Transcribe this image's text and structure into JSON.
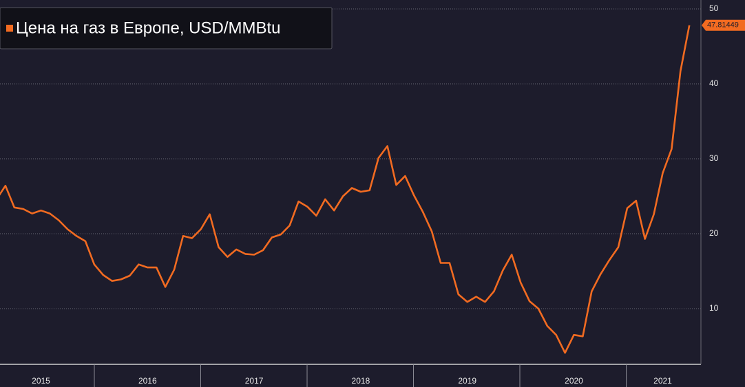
{
  "chart_data": {
    "type": "line",
    "title": "Цена на газ в Европе, USD/MMBtu",
    "categories": [
      null,
      null,
      null,
      null,
      null,
      "2015",
      null,
      null,
      null,
      null,
      null,
      null,
      null,
      null,
      null,
      null,
      null,
      "2016",
      null,
      null,
      null,
      null,
      null,
      null,
      null,
      null,
      null,
      null,
      null,
      "2017",
      null,
      null,
      null,
      null,
      null,
      null,
      null,
      null,
      null,
      null,
      null,
      "2018",
      null,
      null,
      null,
      null,
      null,
      null,
      null,
      null,
      null,
      null,
      null,
      "2019",
      null,
      null,
      null,
      null,
      null,
      null,
      null,
      null,
      null,
      null,
      null,
      "2020",
      null,
      null,
      null,
      null,
      null,
      null,
      null,
      null,
      null,
      "2021",
      null,
      null,
      null
    ],
    "series": [
      {
        "name": "Цена на газ в Европе, USD/MMBtu",
        "color": "#f26b21",
        "values": [
          24.6,
          26.4,
          23.5,
          23.3,
          22.7,
          23.1,
          22.7,
          21.8,
          20.6,
          19.7,
          19.0,
          15.9,
          14.5,
          13.7,
          13.9,
          14.4,
          15.9,
          15.5,
          15.5,
          12.9,
          15.2,
          19.7,
          19.4,
          20.6,
          22.6,
          18.2,
          16.9,
          17.9,
          17.3,
          17.2,
          17.8,
          19.5,
          19.9,
          21.1,
          24.3,
          23.6,
          22.4,
          24.6,
          23.1,
          25.0,
          26.1,
          25.6,
          25.8,
          30.1,
          31.7,
          26.5,
          27.7,
          25.1,
          22.9,
          20.3,
          16.1,
          16.1,
          11.9,
          10.9,
          11.6,
          10.9,
          12.3,
          15.1,
          17.2,
          13.5,
          11.0,
          10.0,
          7.7,
          6.5,
          4.1,
          6.5,
          6.3,
          12.3,
          14.6,
          16.5,
          18.2,
          23.4,
          24.4,
          19.3,
          22.6,
          28.1,
          31.3,
          41.7,
          47.81449
        ]
      }
    ],
    "ylim": [
      2.57,
      51.19
    ],
    "yticks": [
      10,
      20,
      30,
      40,
      50
    ],
    "grid": true
  }
}
